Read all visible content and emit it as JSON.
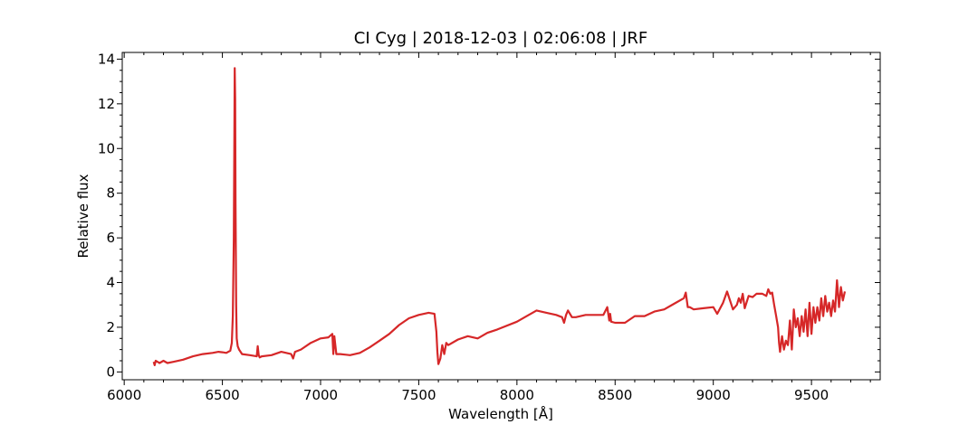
{
  "chart_data": {
    "type": "line",
    "title": "CI Cyg | 2018-12-03 | 02:06:08 | JRF",
    "xlabel": "Wavelength [Å]",
    "ylabel": "Relative flux",
    "xlim": [
      5990,
      9850
    ],
    "ylim": [
      -0.35,
      14.3
    ],
    "xticks": [
      6000,
      6500,
      7000,
      7500,
      8000,
      8500,
      9000,
      9500
    ],
    "yticks": [
      0,
      2,
      4,
      6,
      8,
      10,
      12,
      14
    ],
    "grid": false,
    "legend": "none",
    "series": [
      {
        "color": "#d62728",
        "x": [
          6150,
          6155,
          6160,
          6170,
          6180,
          6200,
          6220,
          6250,
          6300,
          6350,
          6400,
          6450,
          6480,
          6500,
          6520,
          6540,
          6548,
          6553,
          6558,
          6561,
          6563,
          6565,
          6567,
          6570,
          6573,
          6578,
          6585,
          6600,
          6640,
          6675,
          6680,
          6685,
          6690,
          6700,
          6750,
          6800,
          6850,
          6860,
          6870,
          6900,
          6950,
          7000,
          7040,
          7060,
          7065,
          7070,
          7080,
          7100,
          7150,
          7200,
          7250,
          7300,
          7350,
          7400,
          7450,
          7500,
          7550,
          7580,
          7590,
          7595,
          7600,
          7610,
          7620,
          7630,
          7640,
          7650,
          7700,
          7750,
          7800,
          7850,
          7900,
          8000,
          8050,
          8100,
          8150,
          8200,
          8230,
          8240,
          8250,
          8260,
          8280,
          8300,
          8350,
          8400,
          8440,
          8460,
          8470,
          8475,
          8480,
          8500,
          8550,
          8600,
          8650,
          8700,
          8750,
          8800,
          8850,
          8860,
          8870,
          8880,
          8900,
          8950,
          9000,
          9020,
          9050,
          9070,
          9100,
          9120,
          9130,
          9140,
          9150,
          9160,
          9180,
          9200,
          9220,
          9250,
          9270,
          9280,
          9290,
          9300,
          9310,
          9320,
          9330,
          9335,
          9340,
          9350,
          9360,
          9370,
          9380,
          9390,
          9400,
          9410,
          9420,
          9430,
          9440,
          9450,
          9460,
          9470,
          9480,
          9490,
          9500,
          9510,
          9520,
          9530,
          9540,
          9550,
          9560,
          9570,
          9580,
          9590,
          9600,
          9610,
          9620,
          9630,
          9640,
          9650,
          9660,
          9670
        ],
        "y": [
          0.45,
          0.3,
          0.5,
          0.45,
          0.4,
          0.5,
          0.4,
          0.45,
          0.55,
          0.7,
          0.8,
          0.85,
          0.9,
          0.88,
          0.85,
          0.95,
          1.3,
          2.5,
          6.0,
          10.5,
          13.6,
          12.2,
          7.5,
          3.0,
          1.5,
          1.15,
          1.0,
          0.8,
          0.75,
          0.7,
          1.15,
          0.75,
          0.65,
          0.7,
          0.75,
          0.9,
          0.8,
          0.6,
          0.9,
          1.0,
          1.3,
          1.5,
          1.55,
          1.7,
          0.8,
          1.6,
          0.8,
          0.8,
          0.75,
          0.85,
          1.1,
          1.4,
          1.7,
          2.1,
          2.4,
          2.55,
          2.65,
          2.6,
          1.8,
          0.9,
          0.35,
          0.6,
          1.2,
          0.8,
          1.3,
          1.2,
          1.45,
          1.6,
          1.5,
          1.75,
          1.9,
          2.25,
          2.5,
          2.75,
          2.65,
          2.55,
          2.45,
          2.2,
          2.55,
          2.75,
          2.45,
          2.45,
          2.55,
          2.55,
          2.55,
          2.9,
          2.3,
          2.6,
          2.25,
          2.2,
          2.2,
          2.5,
          2.5,
          2.7,
          2.8,
          3.05,
          3.3,
          3.55,
          2.9,
          2.9,
          2.8,
          2.85,
          2.9,
          2.6,
          3.1,
          3.6,
          2.8,
          3.0,
          3.3,
          3.1,
          3.5,
          2.85,
          3.4,
          3.35,
          3.5,
          3.5,
          3.4,
          3.7,
          3.5,
          3.55,
          3.0,
          2.5,
          2.0,
          1.3,
          0.9,
          1.6,
          1.0,
          1.4,
          1.2,
          2.3,
          1.0,
          2.8,
          2.0,
          2.4,
          1.6,
          2.5,
          1.8,
          2.8,
          1.6,
          3.1,
          1.7,
          2.9,
          2.2,
          2.9,
          2.3,
          3.3,
          2.5,
          3.4,
          2.7,
          3.1,
          2.5,
          3.2,
          2.7,
          4.1,
          2.9,
          3.8,
          3.2,
          3.6
        ]
      }
    ]
  }
}
